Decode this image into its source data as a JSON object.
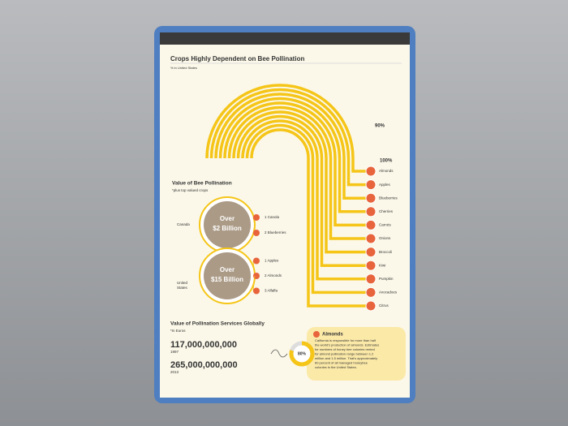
{
  "header": {
    "title": "Crops Highly Dependent on Bee Pollination",
    "subtitle": "% in United States"
  },
  "dependency": {
    "label_high": "90%",
    "label_full": "100%",
    "crops": [
      "Almonds",
      "Apples",
      "Blueberries",
      "Cherries",
      "Carrots",
      "Onions",
      "Broccoli",
      "Kiwi",
      "Pumpkin",
      "Avocadoes",
      "Citrus"
    ]
  },
  "value": {
    "title": "Value of Bee Pollination",
    "note": "*plus top valued crops",
    "countries": [
      {
        "name": "Canada",
        "amount_top": "Over",
        "amount": "$2 Billion",
        "crops": [
          "1 Canola",
          "2 Blueberries"
        ]
      },
      {
        "name": "United States",
        "amount_top": "Over",
        "amount": "$15 Billion",
        "crops": [
          "1 Apples",
          "2 Almonds",
          "3 Alfalfa"
        ]
      }
    ]
  },
  "global": {
    "title": "Value of Pollination Services Globally",
    "note": "*In Euros",
    "entries": [
      {
        "amount": "117,000,000,000",
        "year": "1997"
      },
      {
        "amount": "265,000,000,000",
        "year": "2013"
      }
    ]
  },
  "almonds": {
    "title": "Almonds",
    "percent": "80%",
    "lines": [
      "California is responsible for more than half",
      "the world's production of almonds. Estimates",
      "for numbers of honey bee colonies rented",
      "for almond pollination range between 1.2",
      "million and 1.5 million. That's approximately",
      "60 percent of all managed honeybee",
      "colonies in the United States."
    ]
  }
}
